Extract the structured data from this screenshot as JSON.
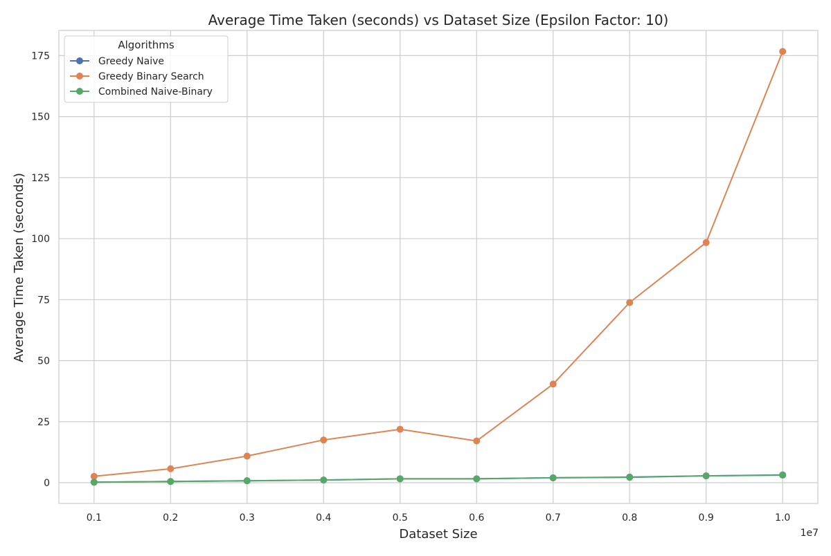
{
  "chart_data": {
    "type": "line",
    "title": "Average Time Taken (seconds) vs Dataset Size (Epsilon Factor: 10)",
    "xlabel": "Dataset Size",
    "ylabel": "Average Time Taken (seconds)",
    "x_offset_label": "1e7",
    "x": [
      1000000,
      2000000,
      3000000,
      4000000,
      5000000,
      6000000,
      7000000,
      8000000,
      9000000,
      10000000
    ],
    "x_ticks": [
      1000000,
      2000000,
      3000000,
      4000000,
      5000000,
      6000000,
      7000000,
      8000000,
      9000000,
      10000000
    ],
    "x_tick_labels": [
      "0.1",
      "0.2",
      "0.3",
      "0.4",
      "0.5",
      "0.6",
      "0.7",
      "0.8",
      "0.9",
      "1.0"
    ],
    "xlim": [
      540000,
      10460000
    ],
    "y_ticks": [
      0,
      25,
      50,
      75,
      100,
      125,
      150,
      175
    ],
    "y_tick_labels": [
      "0",
      "25",
      "50",
      "75",
      "100",
      "125",
      "150",
      "175"
    ],
    "ylim": [
      -8.5,
      185.3
    ],
    "grid": true,
    "legend": {
      "title": "Algorithms",
      "placement": "top-left"
    },
    "series": [
      {
        "name": "Greedy Naive",
        "color": "#4c72b0",
        "marker": "circle",
        "values": [
          0.2,
          0.5,
          0.8,
          1.1,
          1.6,
          1.6,
          2.0,
          2.3,
          2.8,
          3.2
        ]
      },
      {
        "name": "Greedy Binary Search",
        "color": "#dd8452",
        "marker": "circle",
        "values": [
          2.6,
          5.7,
          10.9,
          17.5,
          21.9,
          17.1,
          40.4,
          73.8,
          98.4,
          176.7
        ]
      },
      {
        "name": "Combined Naive-Binary",
        "color": "#55a868",
        "marker": "circle",
        "values": [
          0.2,
          0.5,
          0.8,
          1.1,
          1.6,
          1.6,
          2.0,
          2.2,
          2.8,
          3.1
        ]
      }
    ]
  }
}
